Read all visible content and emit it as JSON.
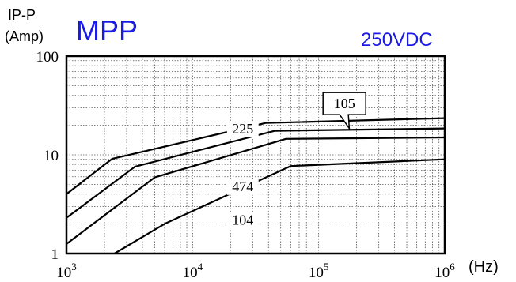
{
  "header": {
    "ylabel_line1": "IP-P",
    "ylabel_line2": "(Amp)",
    "title": "MPP",
    "subtitle": "250VDC",
    "x_unit": "(Hz)"
  },
  "colors": {
    "title": "#1a1ae6",
    "lines": "#000000",
    "grid": "#555555"
  },
  "chart_data": {
    "type": "line",
    "title": "MPP",
    "subtitle": "250VDC",
    "xlabel": "(Hz)",
    "ylabel": "IP-P (Amp)",
    "xscale": "log",
    "yscale": "log",
    "xlim": [
      1000,
      1000000
    ],
    "ylim": [
      1,
      100
    ],
    "x_ticks": [
      {
        "value": 1000,
        "base": "10",
        "exp": "3"
      },
      {
        "value": 10000,
        "base": "10",
        "exp": "4"
      },
      {
        "value": 100000,
        "base": "10",
        "exp": "5"
      },
      {
        "value": 1000000,
        "base": "10",
        "exp": "6"
      }
    ],
    "y_ticks": [
      {
        "value": 1,
        "label": "1"
      },
      {
        "value": 10,
        "label": "10"
      },
      {
        "value": 100,
        "label": "100"
      }
    ],
    "grid": true,
    "series": [
      {
        "name": "105",
        "points": [
          [
            1000,
            4.0
          ],
          [
            2300,
            9.1
          ],
          [
            38000,
            21.0
          ],
          [
            1000000,
            23.5
          ]
        ]
      },
      {
        "name": "225",
        "points": [
          [
            1000,
            2.3
          ],
          [
            3500,
            7.6
          ],
          [
            45000,
            17.5
          ],
          [
            1000000,
            18.5
          ]
        ]
      },
      {
        "name": "474",
        "points": [
          [
            1000,
            1.25
          ],
          [
            5000,
            5.9
          ],
          [
            55000,
            14.5
          ],
          [
            1000000,
            15.0
          ]
        ]
      },
      {
        "name": "104",
        "points": [
          [
            2400,
            1.0
          ],
          [
            6000,
            2.0
          ],
          [
            60000,
            7.7
          ],
          [
            1000000,
            9.0
          ]
        ]
      }
    ],
    "annotations": [
      {
        "text": "225",
        "x": 25000,
        "y": 16.5
      },
      {
        "text": "474",
        "x": 25000,
        "y": 4.3
      },
      {
        "text": "104",
        "x": 25000,
        "y": 1.95
      },
      {
        "text": "105",
        "x": 160000,
        "y": 33,
        "style": "callout",
        "points_to": [
          175000,
          18.5
        ]
      }
    ]
  }
}
